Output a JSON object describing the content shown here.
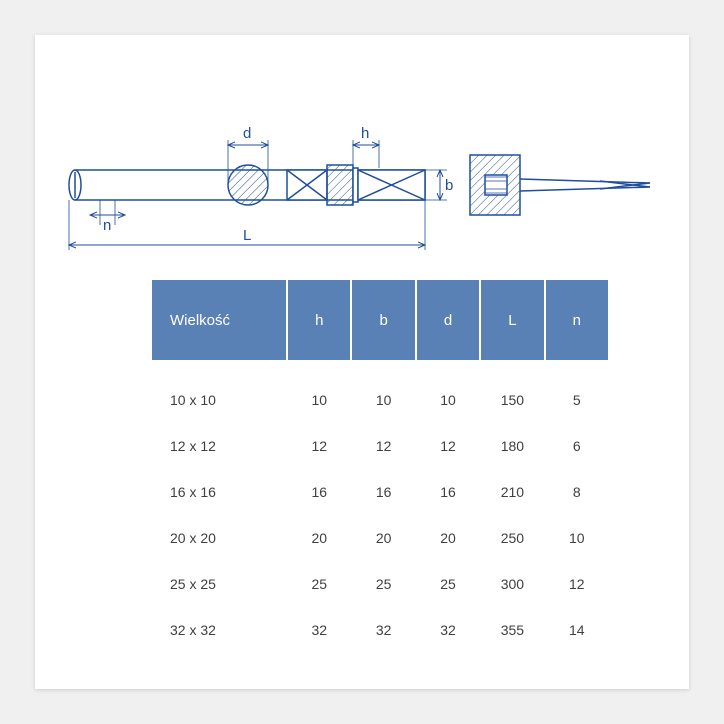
{
  "diagram": {
    "labels": {
      "d": "d",
      "h": "h",
      "b": "b",
      "n": "n",
      "L": "L"
    },
    "stroke": "#1f4e9c",
    "hatch": "#1f4e9c",
    "fill": "#ffffff"
  },
  "table": {
    "header_bg": "#5a81b5",
    "header_fg": "#ffffff",
    "cell_fg": "#404040",
    "columns": [
      "Wielkość",
      "h",
      "b",
      "d",
      "L",
      "n"
    ],
    "rows": [
      [
        "10 x 10",
        "10",
        "10",
        "10",
        "150",
        "5"
      ],
      [
        "12 x 12",
        "12",
        "12",
        "12",
        "180",
        "6"
      ],
      [
        "16 x 16",
        "16",
        "16",
        "16",
        "210",
        "8"
      ],
      [
        "20 x 20",
        "20",
        "20",
        "20",
        "250",
        "10"
      ],
      [
        "25 x 25",
        "25",
        "25",
        "25",
        "300",
        "12"
      ],
      [
        "32 x 32",
        "32",
        "32",
        "32",
        "355",
        "14"
      ]
    ]
  }
}
